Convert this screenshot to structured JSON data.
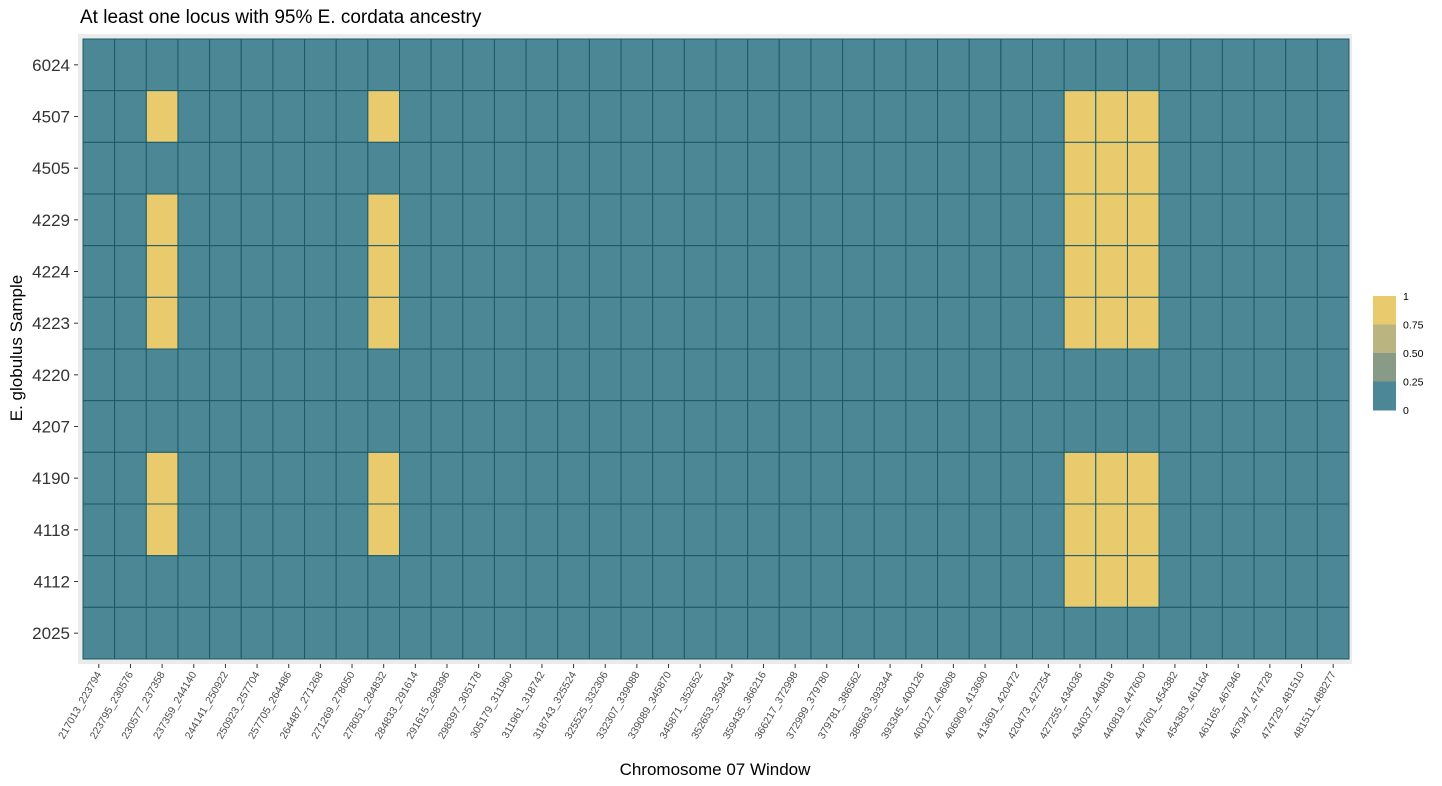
{
  "chart_data": {
    "type": "heatmap",
    "title": "At least one locus with 95% E. cordata ancestry",
    "xlabel": "Chromosome 07 Window",
    "ylabel": "E. globulus Sample",
    "x_categories": [
      "217013_223794",
      "223795_230576",
      "230577_237358",
      "237359_244140",
      "244141_250922",
      "250923_257704",
      "257705_264486",
      "264487_271268",
      "271269_278050",
      "278051_284832",
      "284833_291614",
      "291615_298396",
      "298397_305178",
      "305179_311960",
      "311961_318742",
      "318743_325524",
      "325525_332306",
      "332307_339088",
      "339089_345870",
      "345871_352652",
      "352653_359434",
      "359435_366216",
      "366217_372998",
      "372999_379780",
      "379781_386562",
      "386563_393344",
      "393345_400126",
      "400127_406908",
      "406909_413690",
      "413691_420472",
      "420473_427254",
      "427255_434036",
      "434037_440818",
      "440819_447600",
      "447601_454382",
      "454383_461164",
      "461165_467946",
      "467947_474728",
      "474729_481510",
      "481511_488277"
    ],
    "y_categories": [
      "6024",
      "4507",
      "4505",
      "4229",
      "4224",
      "4223",
      "4220",
      "4207",
      "4190",
      "4118",
      "4112",
      "2025"
    ],
    "values": [
      [
        0,
        0,
        0,
        0,
        0,
        0,
        0,
        0,
        0,
        0,
        0,
        0,
        0,
        0,
        0,
        0,
        0,
        0,
        0,
        0,
        0,
        0,
        0,
        0,
        0,
        0,
        0,
        0,
        0,
        0,
        0,
        0,
        0,
        0,
        0,
        0,
        0,
        0,
        0,
        0
      ],
      [
        0,
        0,
        1,
        0,
        0,
        0,
        0,
        0,
        0,
        1,
        0,
        0,
        0,
        0,
        0,
        0,
        0,
        0,
        0,
        0,
        0,
        0,
        0,
        0,
        0,
        0,
        0,
        0,
        0,
        0,
        0,
        1,
        1,
        1,
        0,
        0,
        0,
        0,
        0,
        0
      ],
      [
        0,
        0,
        0,
        0,
        0,
        0,
        0,
        0,
        0,
        0,
        0,
        0,
        0,
        0,
        0,
        0,
        0,
        0,
        0,
        0,
        0,
        0,
        0,
        0,
        0,
        0,
        0,
        0,
        0,
        0,
        0,
        1,
        1,
        1,
        0,
        0,
        0,
        0,
        0,
        0
      ],
      [
        0,
        0,
        1,
        0,
        0,
        0,
        0,
        0,
        0,
        1,
        0,
        0,
        0,
        0,
        0,
        0,
        0,
        0,
        0,
        0,
        0,
        0,
        0,
        0,
        0,
        0,
        0,
        0,
        0,
        0,
        0,
        1,
        1,
        1,
        0,
        0,
        0,
        0,
        0,
        0
      ],
      [
        0,
        0,
        1,
        0,
        0,
        0,
        0,
        0,
        0,
        1,
        0,
        0,
        0,
        0,
        0,
        0,
        0,
        0,
        0,
        0,
        0,
        0,
        0,
        0,
        0,
        0,
        0,
        0,
        0,
        0,
        0,
        1,
        1,
        1,
        0,
        0,
        0,
        0,
        0,
        0
      ],
      [
        0,
        0,
        1,
        0,
        0,
        0,
        0,
        0,
        0,
        1,
        0,
        0,
        0,
        0,
        0,
        0,
        0,
        0,
        0,
        0,
        0,
        0,
        0,
        0,
        0,
        0,
        0,
        0,
        0,
        0,
        0,
        1,
        1,
        1,
        0,
        0,
        0,
        0,
        0,
        0
      ],
      [
        0,
        0,
        0,
        0,
        0,
        0,
        0,
        0,
        0,
        0,
        0,
        0,
        0,
        0,
        0,
        0,
        0,
        0,
        0,
        0,
        0,
        0,
        0,
        0,
        0,
        0,
        0,
        0,
        0,
        0,
        0,
        0,
        0,
        0,
        0,
        0,
        0,
        0,
        0,
        0
      ],
      [
        0,
        0,
        0,
        0,
        0,
        0,
        0,
        0,
        0,
        0,
        0,
        0,
        0,
        0,
        0,
        0,
        0,
        0,
        0,
        0,
        0,
        0,
        0,
        0,
        0,
        0,
        0,
        0,
        0,
        0,
        0,
        0,
        0,
        0,
        0,
        0,
        0,
        0,
        0,
        0
      ],
      [
        0,
        0,
        1,
        0,
        0,
        0,
        0,
        0,
        0,
        1,
        0,
        0,
        0,
        0,
        0,
        0,
        0,
        0,
        0,
        0,
        0,
        0,
        0,
        0,
        0,
        0,
        0,
        0,
        0,
        0,
        0,
        1,
        1,
        1,
        0,
        0,
        0,
        0,
        0,
        0
      ],
      [
        0,
        0,
        1,
        0,
        0,
        0,
        0,
        0,
        0,
        1,
        0,
        0,
        0,
        0,
        0,
        0,
        0,
        0,
        0,
        0,
        0,
        0,
        0,
        0,
        0,
        0,
        0,
        0,
        0,
        0,
        0,
        1,
        1,
        1,
        0,
        0,
        0,
        0,
        0,
        0
      ],
      [
        0,
        0,
        0,
        0,
        0,
        0,
        0,
        0,
        0,
        0,
        0,
        0,
        0,
        0,
        0,
        0,
        0,
        0,
        0,
        0,
        0,
        0,
        0,
        0,
        0,
        0,
        0,
        0,
        0,
        0,
        0,
        1,
        1,
        1,
        0,
        0,
        0,
        0,
        0,
        0
      ],
      [
        0,
        0,
        0,
        0,
        0,
        0,
        0,
        0,
        0,
        0,
        0,
        0,
        0,
        0,
        0,
        0,
        0,
        0,
        0,
        0,
        0,
        0,
        0,
        0,
        0,
        0,
        0,
        0,
        0,
        0,
        0,
        0,
        0,
        0,
        0,
        0,
        0,
        0,
        0,
        0
      ]
    ],
    "value_range": [
      0,
      1
    ],
    "legend": {
      "labels": [
        "1",
        "0.75",
        "0.50",
        "0.25",
        "0"
      ],
      "colors": [
        "#E9CB6E",
        "#BAB481",
        "#889B87",
        "#4B8795",
        "#4B8795"
      ],
      "placement": "right"
    },
    "colors": {
      "low": "#4B8795",
      "high": "#E9CB6E",
      "cell_border": "#1B5A68",
      "panel_bg": "#EBEBEB"
    }
  }
}
